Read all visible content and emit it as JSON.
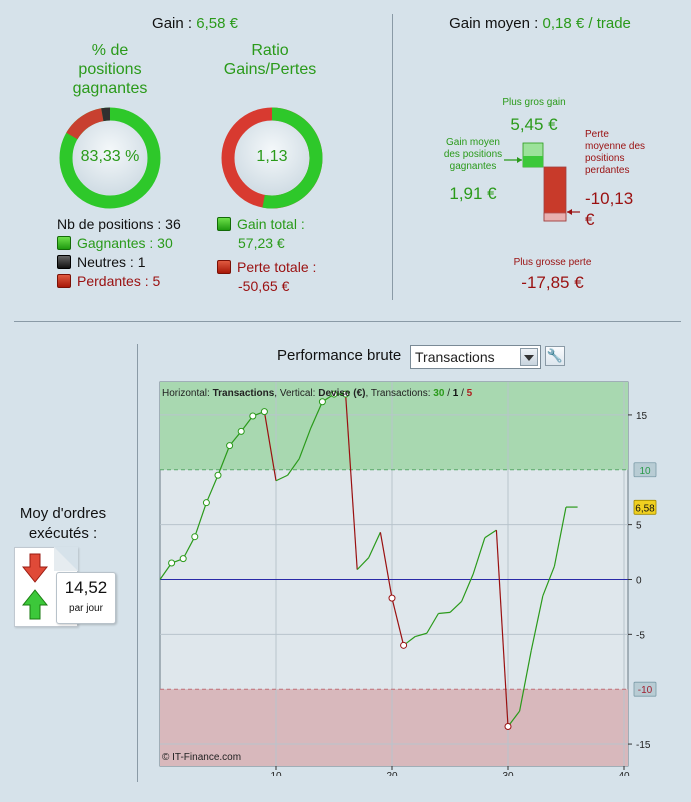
{
  "left_panel": {
    "gain_label": "Gain :",
    "gain_value": "6,58 €",
    "pct_title": "% de\npositions\ngagnantes",
    "pct_value": "83,33 %",
    "pct_fraction": 0.8333,
    "neutral_fraction": 0.0278,
    "ratio_title": "Ratio\nGains/Pertes",
    "ratio_value": "1,13",
    "gain_fraction": 0.5305,
    "nb_positions": "Nb de positions : 36",
    "gagnantes": "Gagnantes : 30",
    "neutres": "Neutres : 1",
    "perdantes": "Perdantes : 5",
    "gain_total_label": "Gain total :",
    "gain_total_value": "57,23 €",
    "perte_totale_label": "Perte totale :",
    "perte_totale_value": "-50,65 €"
  },
  "right_panel": {
    "gain_moyen_label": "Gain moyen :",
    "gain_moyen_value": "0,18 € / trade",
    "plus_gros_gain_label": "Plus gros gain",
    "plus_gros_gain_value": "5,45 €",
    "gain_moyen_pos_label": "Gain moyen\ndes positions\ngagnantes",
    "gain_moyen_pos_value": "1,91 €",
    "perte_moyenne_label": "Perte\nmoyenne des\npositions\nperdantes",
    "perte_moyenne_value": "-10,13\n€",
    "plus_grosse_perte_label": "Plus grosse perte",
    "plus_grosse_perte_value": "-17,85 €"
  },
  "bottom": {
    "moy_ordres_label": "Moy d'ordres\nexécutés :",
    "rate_value": "14,52",
    "rate_unit": "par jour",
    "perf_label": "Performance brute",
    "select_value": "Transactions"
  },
  "colors": {
    "gain_green": "#2a9a1a",
    "loss_red": "#9a1010",
    "zone_green": "#a8d8b0",
    "zone_red": "#d8b8bc",
    "zero_line": "#2a2aa8",
    "current_badge": "#f0d020"
  },
  "chart_data": {
    "type": "line",
    "header": {
      "h_label": "Horizontal:",
      "h_value": "Transactions",
      "v_label": "Vertical:",
      "v_value": "Devise (€)",
      "t_label": "Transactions:",
      "t_win": "30",
      "t_neutral": "1",
      "t_loss": "5"
    },
    "watermark": "© IT-Finance.com",
    "xlim": [
      0,
      40
    ],
    "ylim": [
      -17,
      18
    ],
    "x_ticks": [
      "10",
      "20",
      "30",
      "40"
    ],
    "y_ticks": [
      "15",
      "5",
      "0",
      "-5",
      "-15"
    ],
    "upper_band": "10",
    "lower_band": "-10",
    "current_value": "6,58",
    "points": [
      [
        0,
        0
      ],
      [
        1,
        1.5
      ],
      [
        2,
        1.9
      ],
      [
        3,
        3.9
      ],
      [
        4,
        7
      ],
      [
        5,
        9.5
      ],
      [
        6,
        12.2
      ],
      [
        7,
        13.5
      ],
      [
        8,
        14.9
      ],
      [
        9,
        15.3
      ],
      [
        10,
        9
      ],
      [
        11,
        9.5
      ],
      [
        12,
        11
      ],
      [
        13,
        13.8
      ],
      [
        14,
        16.2
      ],
      [
        15,
        16.9
      ],
      [
        16,
        16.9
      ],
      [
        17,
        0.9
      ],
      [
        18,
        2
      ],
      [
        19,
        4.3
      ],
      [
        20,
        -1.7
      ],
      [
        21,
        -6
      ],
      [
        22,
        -5.2
      ],
      [
        23,
        -4.9
      ],
      [
        24,
        -3.1
      ],
      [
        25,
        -3
      ],
      [
        26,
        -2
      ],
      [
        27,
        0.5
      ],
      [
        28,
        3.8
      ],
      [
        29,
        4.5
      ],
      [
        30,
        -13.4
      ],
      [
        31,
        -12
      ],
      [
        32,
        -6.5
      ],
      [
        33,
        -1.5
      ],
      [
        34,
        1.2
      ],
      [
        35,
        6.6
      ],
      [
        36,
        6.6
      ]
    ],
    "markers": [
      1,
      2,
      3,
      4,
      5,
      6,
      7,
      8,
      9,
      14,
      15,
      16,
      20,
      21,
      30
    ]
  }
}
